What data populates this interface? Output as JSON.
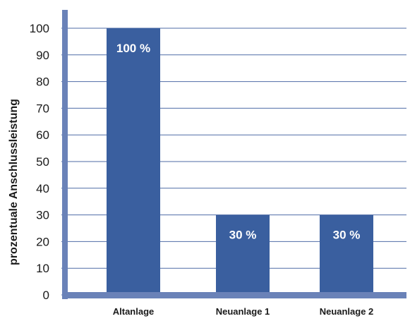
{
  "chart_data": {
    "type": "bar",
    "categories": [
      "Altanlage",
      "Neuanlage 1",
      "Neuanlage 2"
    ],
    "values": [
      100,
      30,
      30
    ],
    "data_labels": [
      "100 %",
      "30 %",
      "30 %"
    ],
    "title": "",
    "xlabel": "",
    "ylabel": "prozentuale Anschlussleistung",
    "ylim": [
      0,
      100
    ],
    "yticks": [
      "0",
      "10",
      "20",
      "30",
      "40",
      "50",
      "60",
      "70",
      "80",
      "90",
      "100"
    ],
    "grid": true,
    "colors": {
      "bar": "#3A5F9F",
      "axis": "#6A82B8",
      "grid": "#4F6BA6"
    }
  }
}
